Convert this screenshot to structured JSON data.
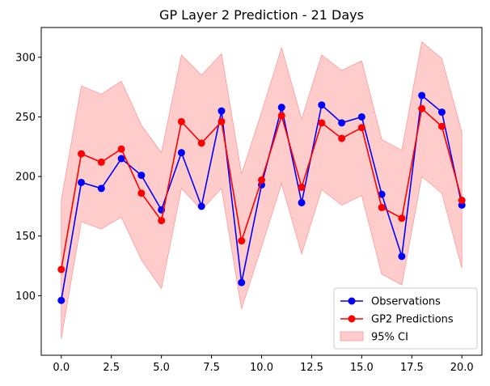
{
  "chart_data": {
    "type": "line",
    "title": "GP Layer 2 Prediction - 21 Days",
    "xlabel": "",
    "ylabel": "",
    "x": [
      0,
      1,
      2,
      3,
      4,
      5,
      6,
      7,
      8,
      9,
      10,
      11,
      12,
      13,
      14,
      15,
      16,
      17,
      18,
      19,
      20
    ],
    "xlim": [
      -1,
      21
    ],
    "ylim": [
      50,
      325
    ],
    "xticks": [
      0.0,
      2.5,
      5.0,
      7.5,
      10.0,
      12.5,
      15.0,
      17.5,
      20.0
    ],
    "xtick_labels": [
      "0.0",
      "2.5",
      "5.0",
      "7.5",
      "10.0",
      "12.5",
      "15.0",
      "17.5",
      "20.0"
    ],
    "yticks": [
      100,
      150,
      200,
      250,
      300
    ],
    "ytick_labels": [
      "100",
      "150",
      "200",
      "250",
      "300"
    ],
    "grid": false,
    "legend_position": "lower-right",
    "series": [
      {
        "name": "Observations",
        "color": "#0000ff",
        "marker": "circle",
        "values": [
          96,
          195,
          190,
          215,
          201,
          172,
          220,
          175,
          255,
          111,
          193,
          258,
          178,
          260,
          245,
          250,
          185,
          133,
          268,
          254,
          176
        ]
      },
      {
        "name": "GP2 Predictions",
        "color": "#ff0000",
        "marker": "circle",
        "values": [
          122,
          219,
          212,
          223,
          186,
          163,
          246,
          228,
          246,
          146,
          197,
          251,
          191,
          245,
          232,
          241,
          174,
          165,
          257,
          242,
          180
        ]
      }
    ],
    "band": {
      "name": "95% CI",
      "color": "#ffcccc",
      "edge_color": "#ff9999",
      "lower": [
        64,
        162,
        156,
        166,
        130,
        106,
        190,
        172,
        190,
        89,
        141,
        194,
        135,
        189,
        176,
        184,
        118,
        109,
        200,
        186,
        123
      ],
      "upper": [
        180,
        276,
        269,
        280,
        243,
        220,
        302,
        285,
        303,
        202,
        254,
        308,
        248,
        302,
        289,
        297,
        231,
        222,
        313,
        299,
        237
      ]
    }
  }
}
